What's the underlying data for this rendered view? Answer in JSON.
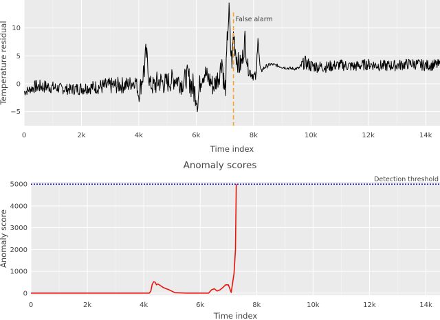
{
  "charts": [
    {
      "type": "line",
      "title": "",
      "xlabel": "Time index",
      "ylabel": "Temperature residual",
      "xlim": [
        0,
        14500
      ],
      "ylim": [
        -7.5,
        15
      ],
      "xticks": [
        0,
        2000,
        4000,
        6000,
        8000,
        10000,
        12000,
        14000
      ],
      "xtick_labels": [
        "0",
        "2k",
        "4k",
        "6k",
        "8k",
        "10k",
        "12k",
        "14k"
      ],
      "yticks": [
        -5,
        0,
        5,
        10
      ],
      "ytick_labels": [
        "−5",
        "0",
        "5",
        "10"
      ],
      "grid": true,
      "background": "#ebebeb",
      "series": [
        {
          "color": "#000000",
          "x": [
            0,
            200,
            400,
            800,
            1200,
            1600,
            2000,
            2400,
            2800,
            3200,
            3600,
            3900,
            4000,
            4100,
            4200,
            4250,
            4300,
            4350,
            4400,
            4500,
            4700,
            4900,
            5100,
            5300,
            5500,
            5700,
            5900,
            6000,
            6050,
            6100,
            6150,
            6200,
            6300,
            6400,
            6500,
            6600,
            6800,
            6900,
            7000,
            7050,
            7100,
            7150,
            7200,
            7250,
            7300,
            7400,
            7500,
            7600,
            7700,
            7800,
            7900,
            8000,
            8100,
            8150,
            8200,
            8250,
            8300,
            8400,
            8600,
            8800,
            9000,
            9200,
            9400,
            9600,
            9700,
            9800,
            10000,
            10500,
            11000,
            11500,
            12000,
            12500,
            13000,
            13500,
            14000,
            14500
          ],
          "y": [
            -1.5,
            -1,
            -0.5,
            -0.5,
            -0.8,
            -1,
            -0.8,
            -0.6,
            -0.5,
            -0.3,
            -0.2,
            0.5,
            -2,
            0.5,
            3,
            5.5,
            4,
            1,
            0,
            -0.5,
            0.5,
            0,
            0.5,
            1,
            0,
            1.5,
            -1,
            -2,
            -4,
            -1,
            0.5,
            1.5,
            2,
            1,
            0.5,
            -0.5,
            1.5,
            4.5,
            -2,
            2,
            10,
            13,
            6,
            4,
            9,
            5,
            3,
            4,
            8,
            3,
            2,
            1.5,
            1,
            10,
            4,
            2,
            2.5,
            3,
            3.5,
            3.3,
            3,
            2.8,
            2.7,
            2.8,
            3.5,
            3.8,
            3.2,
            3,
            3.4,
            3.1,
            3.5,
            3.2,
            3.3,
            3.6,
            3.3,
            3.4
          ],
          "noise": [
            0.8,
            0.8,
            1.2,
            1.2,
            1,
            1,
            1.2,
            1.2,
            1.5,
            1.5,
            1.5,
            1.2,
            1.5,
            2,
            3,
            2,
            2,
            1.5,
            1.5,
            2,
            2.2,
            2,
            2,
            2,
            2,
            2,
            3,
            2,
            1.5,
            2,
            2,
            2,
            2,
            2,
            2,
            2,
            2,
            2,
            3,
            3,
            3,
            2,
            2,
            2,
            3,
            2,
            2,
            2,
            2,
            1.5,
            1,
            1,
            1,
            2,
            1.5,
            0.6,
            0.4,
            0.4,
            0.3,
            0.3,
            0.3,
            0.3,
            0.3,
            0.3,
            1,
            1.2,
            1.2,
            1,
            1,
            1,
            1,
            1,
            1,
            1,
            1,
            1
          ]
        }
      ],
      "annotations": [
        {
          "x": 7300,
          "text": "False alarm",
          "color": "#f5a623",
          "style": "dashed"
        }
      ]
    },
    {
      "type": "line",
      "title": "Anomaly scores",
      "xlabel": "Time index",
      "ylabel": "Anomaly score",
      "xlim": [
        0,
        14500
      ],
      "ylim": [
        -100,
        5100
      ],
      "xticks": [
        0,
        2000,
        4000,
        6000,
        8000,
        10000,
        12000,
        14000
      ],
      "xtick_labels": [
        "0",
        "2k",
        "4k",
        "6k",
        "8k",
        "10k",
        "12k",
        "14k"
      ],
      "yticks": [
        0,
        1000,
        2000,
        3000,
        4000,
        5000
      ],
      "ytick_labels": [
        "0",
        "1000",
        "2000",
        "3000",
        "4000",
        "5000"
      ],
      "grid": true,
      "background": "#ebebeb",
      "series": [
        {
          "color": "#e8140c",
          "x": [
            0,
            4200,
            4250,
            4300,
            4350,
            4400,
            4450,
            4500,
            4700,
            4900,
            5100,
            5500,
            6300,
            6400,
            6500,
            6600,
            6700,
            6800,
            6900,
            7000,
            7050,
            7100,
            7200,
            7250,
            7280
          ],
          "y": [
            0,
            0,
            100,
            400,
            520,
            500,
            380,
            420,
            250,
            150,
            20,
            0,
            0,
            150,
            200,
            100,
            150,
            250,
            380,
            380,
            200,
            30,
            900,
            2000,
            5000
          ]
        }
      ],
      "threshold": {
        "value": 5000,
        "label": "Detection threshold",
        "color": "#1a1ae6"
      }
    }
  ]
}
